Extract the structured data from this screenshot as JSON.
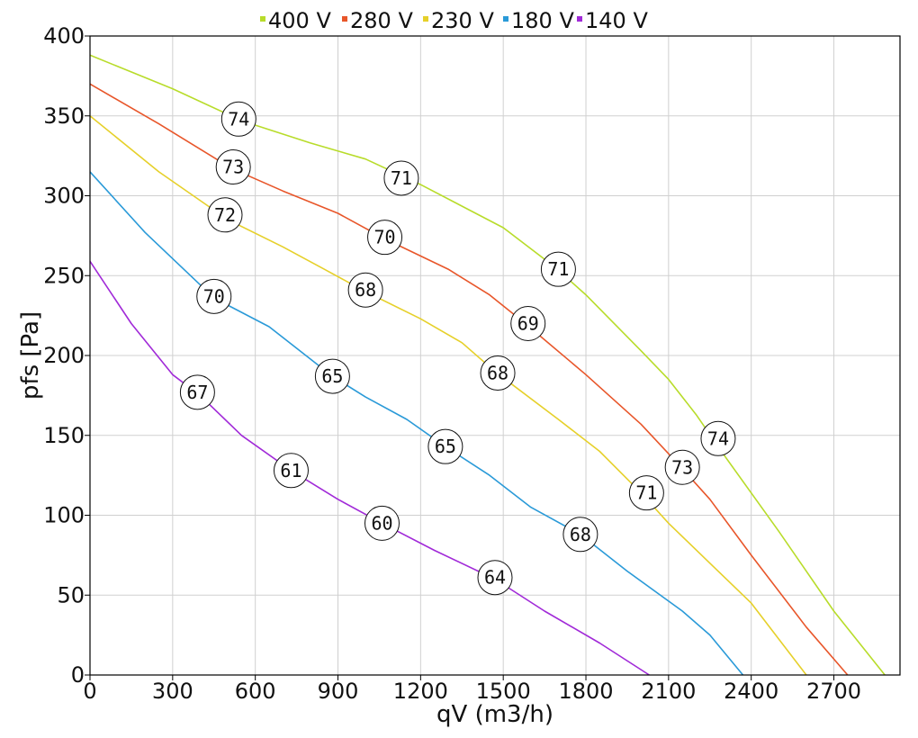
{
  "chart_data": {
    "type": "line",
    "title": "",
    "xlabel": "qV (m3/h)",
    "ylabel": "pfs [Pa]",
    "xlim": [
      0,
      2940
    ],
    "ylim": [
      0,
      400
    ],
    "xticks": [
      0,
      300,
      600,
      900,
      1200,
      1500,
      1800,
      2100,
      2400,
      2700
    ],
    "yticks": [
      0,
      50,
      100,
      150,
      200,
      250,
      300,
      350,
      400
    ],
    "grid": true,
    "legend_position": "top-center",
    "series": [
      {
        "name": "400 V",
        "color": "#b8dc2a",
        "points": [
          [
            0,
            388
          ],
          [
            300,
            367
          ],
          [
            550,
            347
          ],
          [
            800,
            333
          ],
          [
            1000,
            323
          ],
          [
            1200,
            307
          ],
          [
            1500,
            280
          ],
          [
            1690,
            255
          ],
          [
            1800,
            238
          ],
          [
            2000,
            203
          ],
          [
            2100,
            185
          ],
          [
            2200,
            163
          ],
          [
            2300,
            138
          ],
          [
            2500,
            90
          ],
          [
            2700,
            40
          ],
          [
            2885,
            0
          ]
        ],
        "markers": [
          {
            "x": 540,
            "y": 348,
            "label": "74"
          },
          {
            "x": 1130,
            "y": 311,
            "label": "71"
          },
          {
            "x": 1700,
            "y": 254,
            "label": "71"
          },
          {
            "x": 2280,
            "y": 148,
            "label": "74"
          }
        ]
      },
      {
        "name": "280 V",
        "color": "#e8562a",
        "points": [
          [
            0,
            370
          ],
          [
            250,
            345
          ],
          [
            515,
            317
          ],
          [
            700,
            303
          ],
          [
            900,
            289
          ],
          [
            1070,
            273
          ],
          [
            1300,
            254
          ],
          [
            1450,
            238
          ],
          [
            1580,
            220
          ],
          [
            1800,
            188
          ],
          [
            2000,
            157
          ],
          [
            2130,
            133
          ],
          [
            2250,
            110
          ],
          [
            2400,
            75
          ],
          [
            2600,
            30
          ],
          [
            2750,
            0
          ]
        ],
        "markers": [
          {
            "x": 520,
            "y": 318,
            "label": "73"
          },
          {
            "x": 1070,
            "y": 274,
            "label": "70"
          },
          {
            "x": 1590,
            "y": 220,
            "label": "69"
          },
          {
            "x": 2150,
            "y": 130,
            "label": "73"
          }
        ]
      },
      {
        "name": "230 V",
        "color": "#e6d02a",
        "points": [
          [
            0,
            350
          ],
          [
            250,
            315
          ],
          [
            500,
            285
          ],
          [
            700,
            268
          ],
          [
            850,
            254
          ],
          [
            1000,
            240
          ],
          [
            1200,
            223
          ],
          [
            1350,
            208
          ],
          [
            1470,
            190
          ],
          [
            1700,
            160
          ],
          [
            1850,
            140
          ],
          [
            2000,
            114
          ],
          [
            2100,
            95
          ],
          [
            2250,
            70
          ],
          [
            2400,
            45
          ],
          [
            2600,
            0
          ]
        ],
        "markers": [
          {
            "x": 490,
            "y": 288,
            "label": "72"
          },
          {
            "x": 1000,
            "y": 241,
            "label": "68"
          },
          {
            "x": 1480,
            "y": 189,
            "label": "68"
          },
          {
            "x": 2020,
            "y": 114,
            "label": "71"
          }
        ]
      },
      {
        "name": "180 V",
        "color": "#2a9ad8",
        "points": [
          [
            0,
            315
          ],
          [
            200,
            277
          ],
          [
            450,
            236
          ],
          [
            650,
            218
          ],
          [
            880,
            187
          ],
          [
            1000,
            174
          ],
          [
            1150,
            160
          ],
          [
            1290,
            143
          ],
          [
            1450,
            125
          ],
          [
            1600,
            105
          ],
          [
            1780,
            88
          ],
          [
            1950,
            65
          ],
          [
            2150,
            40
          ],
          [
            2250,
            25
          ],
          [
            2370,
            0
          ]
        ],
        "markers": [
          {
            "x": 450,
            "y": 237,
            "label": "70"
          },
          {
            "x": 880,
            "y": 187,
            "label": "65"
          },
          {
            "x": 1290,
            "y": 143,
            "label": "65"
          },
          {
            "x": 1780,
            "y": 88,
            "label": "68"
          }
        ]
      },
      {
        "name": "140 V",
        "color": "#a12ad8",
        "points": [
          [
            0,
            259
          ],
          [
            150,
            220
          ],
          [
            300,
            188
          ],
          [
            400,
            175
          ],
          [
            550,
            150
          ],
          [
            730,
            128
          ],
          [
            900,
            110
          ],
          [
            1060,
            95
          ],
          [
            1250,
            78
          ],
          [
            1470,
            60
          ],
          [
            1650,
            40
          ],
          [
            1850,
            20
          ],
          [
            2030,
            0
          ]
        ],
        "markers": [
          {
            "x": 390,
            "y": 177,
            "label": "67"
          },
          {
            "x": 730,
            "y": 128,
            "label": "61"
          },
          {
            "x": 1060,
            "y": 95,
            "label": "60"
          },
          {
            "x": 1470,
            "y": 61,
            "label": "64"
          }
        ]
      }
    ]
  }
}
